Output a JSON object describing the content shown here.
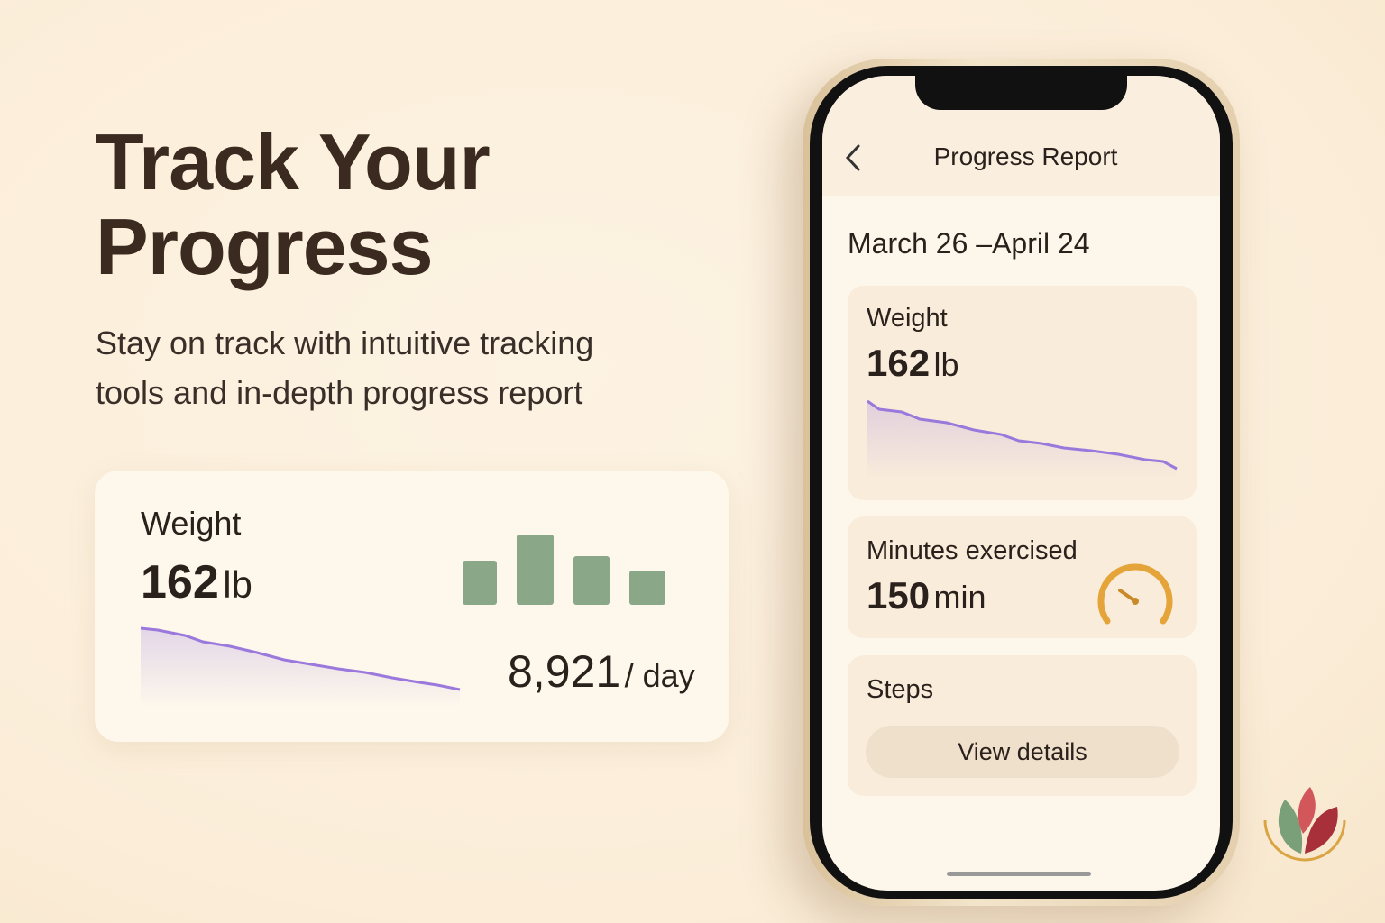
{
  "hero": {
    "title_lines": [
      "Track Your",
      "Progress"
    ],
    "subtitle_lines": [
      "Stay on track with intuitive tracking",
      "tools and in-depth progress report"
    ]
  },
  "summary_card": {
    "label": "Weight",
    "value": "162",
    "unit": "lb",
    "steps_value": "8,921",
    "steps_unit": "/ day"
  },
  "phone": {
    "header": "Progress Report",
    "date_range": "March 26 –April 24",
    "weight_card": {
      "label": "Weight",
      "value": "162",
      "unit": "lb"
    },
    "exercise_card": {
      "label": "Minutes exercised",
      "value": "150",
      "unit": "min"
    },
    "steps_card": {
      "label": "Steps",
      "button": "View details"
    }
  }
}
